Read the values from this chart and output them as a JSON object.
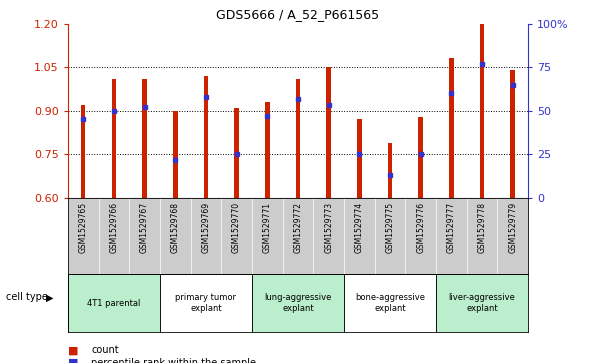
{
  "title": "GDS5666 / A_52_P661565",
  "samples": [
    "GSM1529765",
    "GSM1529766",
    "GSM1529767",
    "GSM1529768",
    "GSM1529769",
    "GSM1529770",
    "GSM1529771",
    "GSM1529772",
    "GSM1529773",
    "GSM1529774",
    "GSM1529775",
    "GSM1529776",
    "GSM1529777",
    "GSM1529778",
    "GSM1529779"
  ],
  "counts": [
    0.92,
    1.01,
    1.01,
    0.9,
    1.02,
    0.908,
    0.93,
    1.01,
    1.05,
    0.87,
    0.79,
    0.88,
    1.08,
    1.2,
    1.04
  ],
  "percentiles": [
    45,
    50,
    52,
    22,
    58,
    25,
    47,
    57,
    53,
    25,
    13,
    25,
    60,
    77,
    65
  ],
  "ylim_left": [
    0.6,
    1.2
  ],
  "yticks_left": [
    0.6,
    0.75,
    0.9,
    1.05,
    1.2
  ],
  "yticks_right": [
    0,
    25,
    50,
    75,
    100
  ],
  "bar_color": "#CC2200",
  "dot_color": "#3333CC",
  "axis_left_color": "#CC2200",
  "axis_right_color": "#3333CC",
  "cell_types": [
    {
      "label": "4T1 parental",
      "start": 0,
      "end": 3,
      "color": "#bbeecc"
    },
    {
      "label": "primary tumor\nexplant",
      "start": 3,
      "end": 6,
      "color": "#ffffff"
    },
    {
      "label": "lung-aggressive\nexplant",
      "start": 6,
      "end": 9,
      "color": "#bbeecc"
    },
    {
      "label": "bone-aggressive\nexplant",
      "start": 9,
      "end": 12,
      "color": "#ffffff"
    },
    {
      "label": "liver-aggressive\nexplant",
      "start": 12,
      "end": 15,
      "color": "#bbeecc"
    }
  ],
  "legend_count_label": "count",
  "legend_percentile_label": "percentile rank within the sample",
  "cell_type_label": "cell type",
  "sample_area_color": "#cccccc",
  "bar_width": 0.15
}
